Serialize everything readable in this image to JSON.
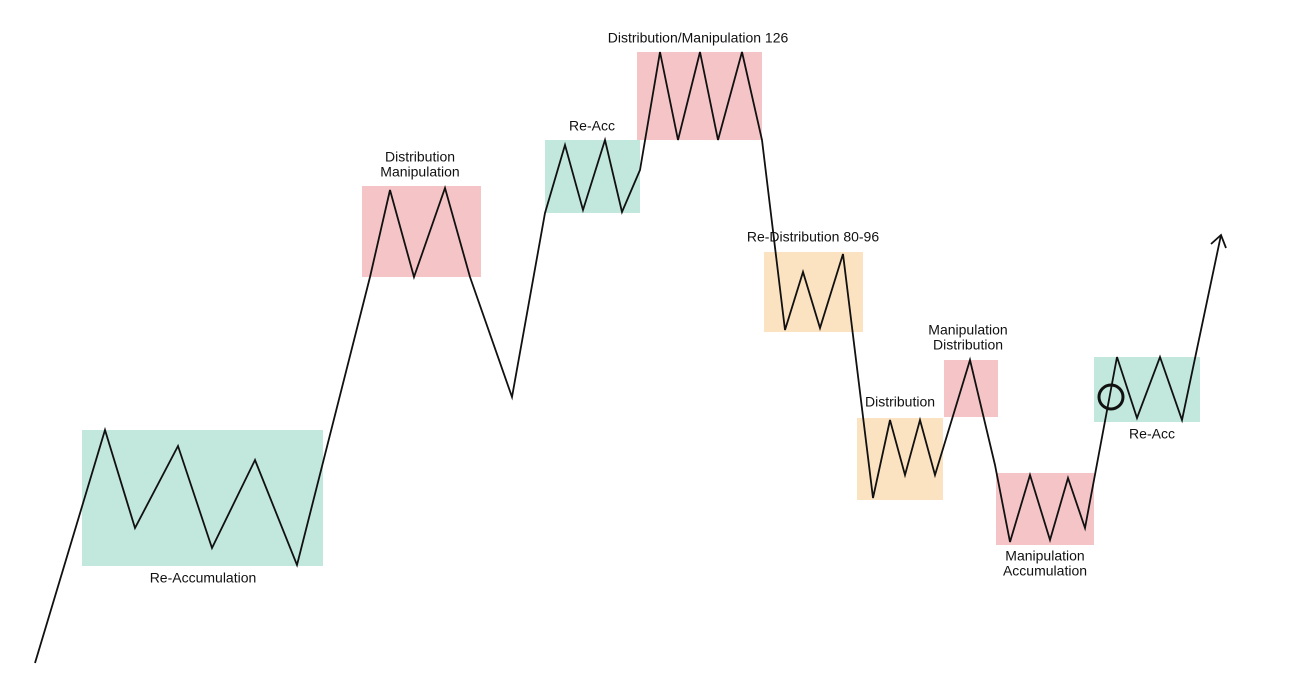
{
  "zones": [
    {
      "lines": [
        "Re-Accumulation"
      ]
    },
    {
      "lines": [
        "Distribution",
        "Manipulation"
      ]
    },
    {
      "lines": [
        "Re-Acc"
      ]
    },
    {
      "lines": [
        "Distribution/Manipulation 126"
      ]
    },
    {
      "lines": [
        "Re-Distribution 80-96"
      ]
    },
    {
      "lines": [
        "Manipulation",
        "Distribution"
      ]
    },
    {
      "lines": [
        "Distribution"
      ]
    },
    {
      "lines": [
        "Manipulation",
        "Accumulation"
      ]
    },
    {
      "lines": [
        "Re-Acc"
      ]
    }
  ]
}
